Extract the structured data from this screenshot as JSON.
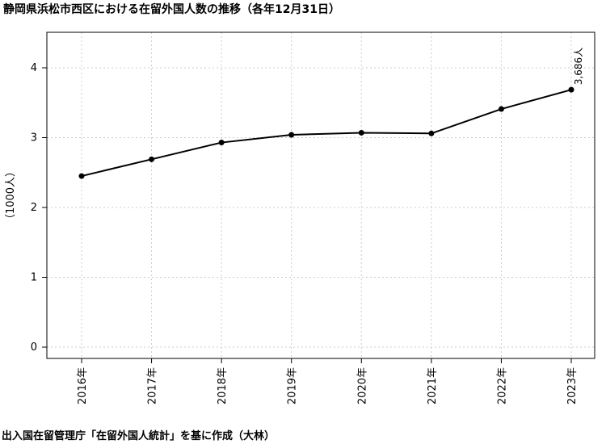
{
  "chart_data": {
    "type": "line",
    "title": "静岡県浜松市西区における在留外国人数の推移（各年12月31日）",
    "categories": [
      "2016年",
      "2017年",
      "2018年",
      "2019年",
      "2020年",
      "2021年",
      "2022年",
      "2023年"
    ],
    "series": [
      {
        "values": [
          2.45,
          2.69,
          2.93,
          3.04,
          3.07,
          3.06,
          3.41,
          3.686
        ]
      }
    ],
    "ylabel": "（1000人）",
    "xlabel": "",
    "ylim": [
      0,
      4.5
    ],
    "yticks": [
      0,
      1,
      2,
      3,
      4
    ],
    "grid": true,
    "annotations": [
      {
        "index": 7,
        "text": "3,686人"
      }
    ],
    "source": "出入国在留管理庁「在留外国人統計」を基に作成（大林）",
    "colors": {
      "line": "#000000",
      "marker": "#000000",
      "grid": "#cccccc",
      "frame": "#000000"
    }
  }
}
